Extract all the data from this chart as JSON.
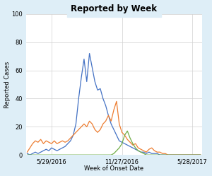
{
  "title": "Reported by Week",
  "xlabel": "Week of Onset Date",
  "ylabel": "Reported Cases",
  "ylim": [
    0,
    100
  ],
  "yticks": [
    0,
    20,
    40,
    60,
    80,
    100
  ],
  "xtick_labels": [
    "5/29/2016",
    "11/27/2016",
    "5/28/2017"
  ],
  "background_color": "#deeef7",
  "plot_background": "#ffffff",
  "title_fontsize": 8.5,
  "label_fontsize": 6.0,
  "tick_fontsize": 6.0,
  "blue_color": "#4472c4",
  "orange_color": "#ed7d31",
  "green_color": "#70ad47",
  "blue": [
    1,
    0,
    1,
    2,
    1,
    2,
    3,
    4,
    3,
    5,
    4,
    3,
    4,
    5,
    6,
    8,
    10,
    14,
    22,
    40,
    55,
    68,
    52,
    72,
    62,
    52,
    46,
    47,
    40,
    35,
    28,
    22,
    18,
    14,
    10,
    9,
    8,
    7,
    6,
    5,
    4,
    3,
    2,
    2,
    1,
    2,
    1,
    1,
    1,
    0,
    0,
    0,
    0,
    0,
    0,
    0,
    0,
    0,
    0,
    0,
    0,
    0,
    0,
    0,
    0
  ],
  "orange": [
    2,
    5,
    8,
    10,
    9,
    11,
    8,
    10,
    9,
    8,
    10,
    8,
    9,
    10,
    9,
    10,
    12,
    14,
    16,
    18,
    20,
    22,
    20,
    24,
    22,
    18,
    16,
    18,
    22,
    24,
    28,
    24,
    32,
    38,
    22,
    16,
    14,
    11,
    9,
    7,
    8,
    5,
    4,
    3,
    2,
    4,
    5,
    3,
    2,
    2,
    1,
    1,
    0,
    0,
    0,
    0,
    0,
    0,
    0,
    0,
    0,
    0,
    0,
    0,
    0
  ],
  "green": [
    0,
    0,
    0,
    0,
    0,
    0,
    0,
    0,
    0,
    0,
    0,
    0,
    0,
    0,
    0,
    0,
    0,
    0,
    0,
    0,
    0,
    0,
    0,
    0,
    0,
    0,
    0,
    0,
    0,
    0,
    0,
    0,
    1,
    3,
    5,
    8,
    14,
    17,
    12,
    8,
    5,
    3,
    2,
    1,
    0,
    0,
    0,
    0,
    0,
    0,
    0,
    0,
    0,
    0,
    0,
    0,
    0,
    0,
    0,
    0,
    0,
    0,
    0,
    0,
    0
  ],
  "n_weeks": 65,
  "xtick_positions": [
    9,
    35,
    61
  ]
}
